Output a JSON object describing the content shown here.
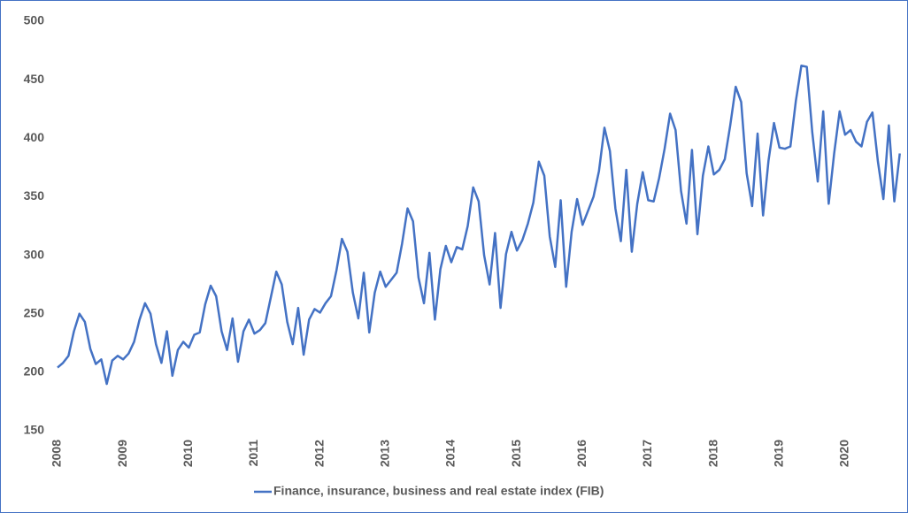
{
  "chart_data": {
    "type": "line",
    "categories": [
      "2008",
      null,
      null,
      null,
      null,
      null,
      null,
      null,
      null,
      null,
      null,
      null,
      "2009",
      null,
      null,
      null,
      null,
      null,
      null,
      null,
      null,
      null,
      null,
      null,
      "2010",
      null,
      null,
      null,
      null,
      null,
      null,
      null,
      null,
      null,
      null,
      null,
      "2011",
      null,
      null,
      null,
      null,
      null,
      null,
      null,
      null,
      null,
      null,
      null,
      "2012",
      null,
      null,
      null,
      null,
      null,
      null,
      null,
      null,
      null,
      null,
      null,
      "2013",
      null,
      null,
      null,
      null,
      null,
      null,
      null,
      null,
      null,
      null,
      null,
      "2014",
      null,
      null,
      null,
      null,
      null,
      null,
      null,
      null,
      null,
      null,
      null,
      "2015",
      null,
      null,
      null,
      null,
      null,
      null,
      null,
      null,
      null,
      null,
      null,
      "2016",
      null,
      null,
      null,
      null,
      null,
      null,
      null,
      null,
      null,
      null,
      null,
      "2017",
      null,
      null,
      null,
      null,
      null,
      null,
      null,
      null,
      null,
      null,
      null,
      "2018",
      null,
      null,
      null,
      null,
      null,
      null,
      null,
      null,
      null,
      null,
      null,
      "2019",
      null,
      null,
      null,
      null,
      null,
      null,
      null,
      null,
      null,
      null,
      null,
      "2020",
      null,
      null,
      null,
      null,
      null,
      null,
      null,
      null,
      null,
      null
    ],
    "series": [
      {
        "name": "Finance, insurance, business and real estate index (FIB)",
        "color": "#4472c4",
        "values": [
          204,
          208,
          214,
          235,
          250,
          243,
          220,
          207,
          211,
          190,
          210,
          214,
          211,
          216,
          226,
          245,
          259,
          250,
          224,
          208,
          235,
          197,
          219,
          226,
          221,
          232,
          234,
          258,
          274,
          265,
          235,
          219,
          246,
          209,
          235,
          245,
          233,
          236,
          242,
          264,
          286,
          275,
          243,
          224,
          255,
          215,
          245,
          254,
          251,
          259,
          265,
          287,
          314,
          303,
          268,
          246,
          285,
          234,
          268,
          286,
          273,
          279,
          285,
          310,
          340,
          329,
          281,
          259,
          302,
          245,
          288,
          308,
          294,
          307,
          305,
          325,
          358,
          346,
          300,
          275,
          319,
          255,
          301,
          320,
          304,
          313,
          327,
          345,
          380,
          368,
          316,
          290,
          347,
          273,
          320,
          348,
          326,
          338,
          350,
          372,
          409,
          389,
          340,
          312,
          373,
          303,
          344,
          371,
          347,
          346,
          366,
          391,
          421,
          407,
          355,
          327,
          390,
          318,
          368,
          393,
          369,
          373,
          382,
          411,
          444,
          431,
          370,
          342,
          404,
          334,
          381,
          413,
          392,
          391,
          393,
          432,
          462,
          461,
          405,
          363,
          423,
          344,
          387,
          423,
          403,
          407,
          397,
          393,
          414,
          422,
          380,
          348,
          411,
          346,
          387
        ]
      }
    ],
    "ylim": [
      150,
      500
    ],
    "yticks": [
      150,
      200,
      250,
      300,
      350,
      400,
      450,
      500
    ],
    "grid": false,
    "legend": "bottom"
  }
}
